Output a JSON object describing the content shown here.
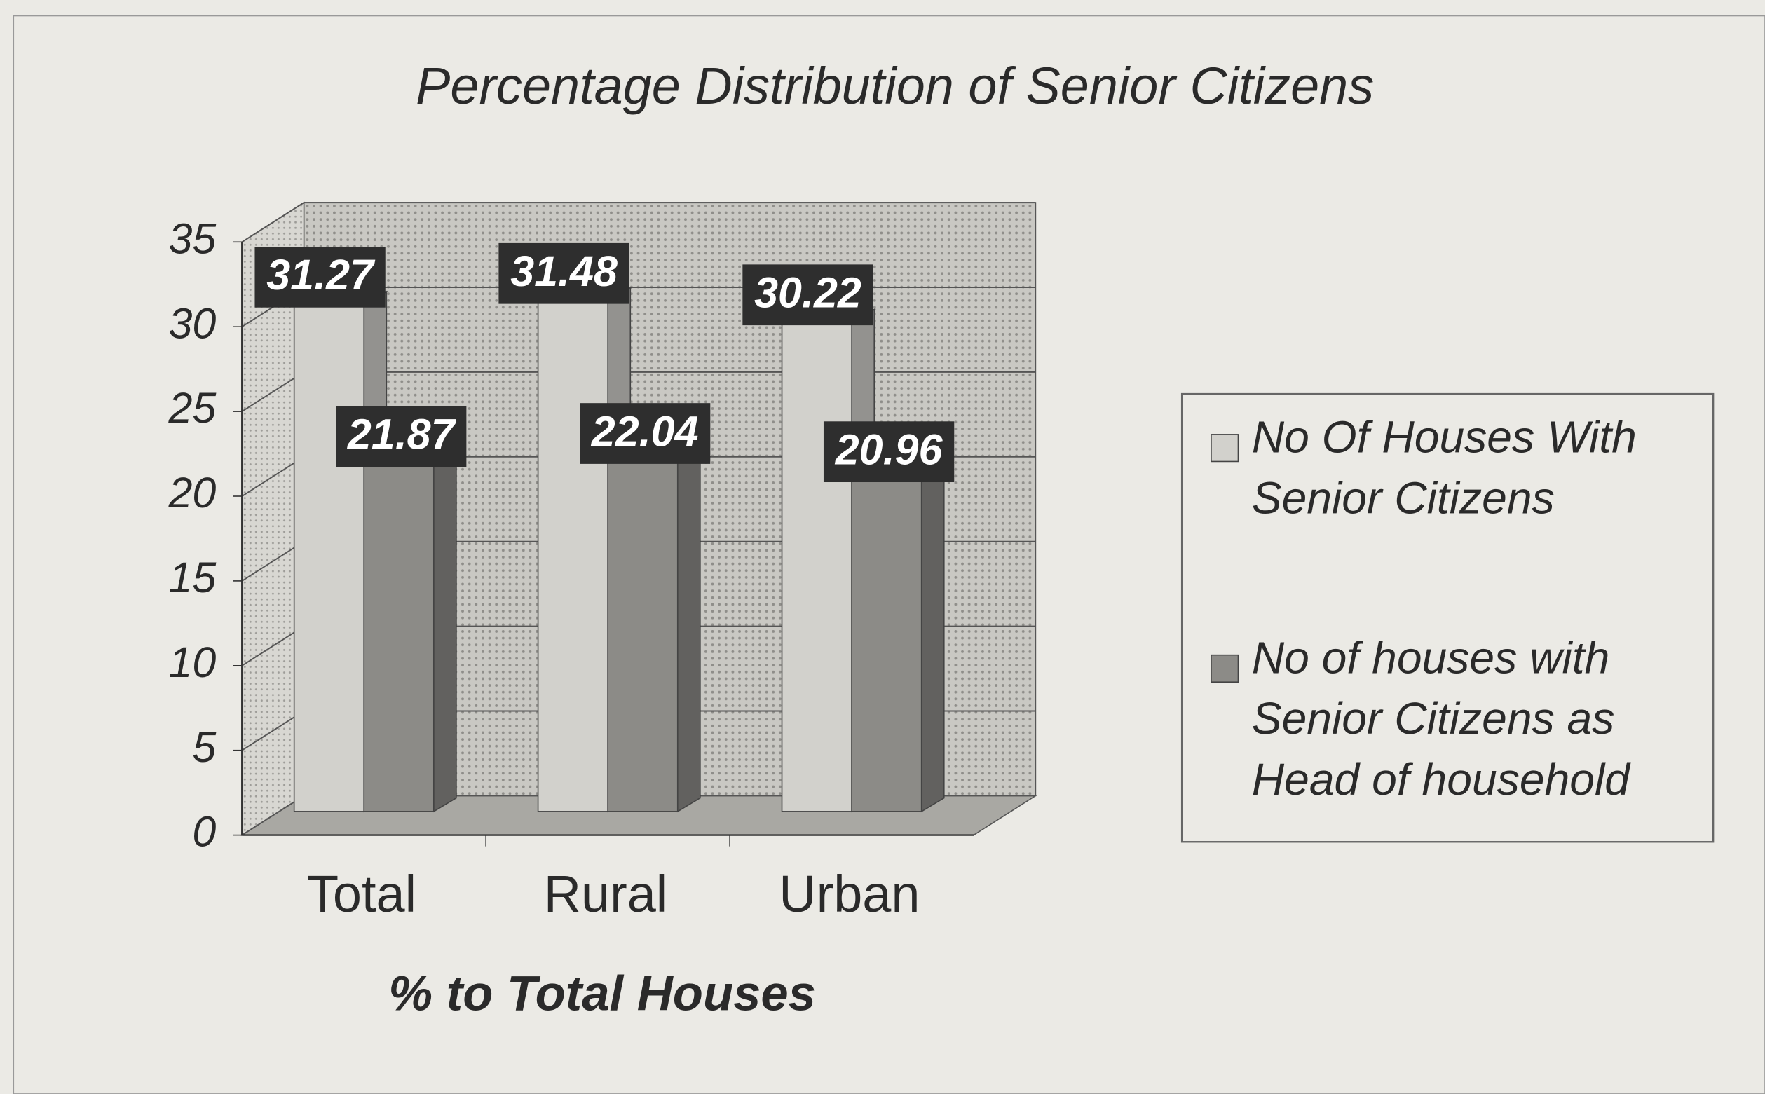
{
  "chart_data": {
    "type": "bar",
    "title": "Percentage Distribution of Senior Citizens",
    "x_label": "% to Total Houses",
    "categories": [
      "Total",
      "Rural",
      "Urban"
    ],
    "series": [
      {
        "name": "No Of Houses With Senior Citizens",
        "color": "#d2d1cc",
        "values": [
          31.27,
          31.48,
          30.22
        ]
      },
      {
        "name": "No of houses with Senior Citizens as Head of household",
        "color": "#8c8b87",
        "values": [
          21.87,
          22.04,
          20.96
        ]
      }
    ],
    "ylim": [
      0,
      35
    ],
    "yticks": [
      0,
      5,
      10,
      15,
      20,
      25,
      30,
      35
    ],
    "grid": true,
    "legend": "right"
  }
}
